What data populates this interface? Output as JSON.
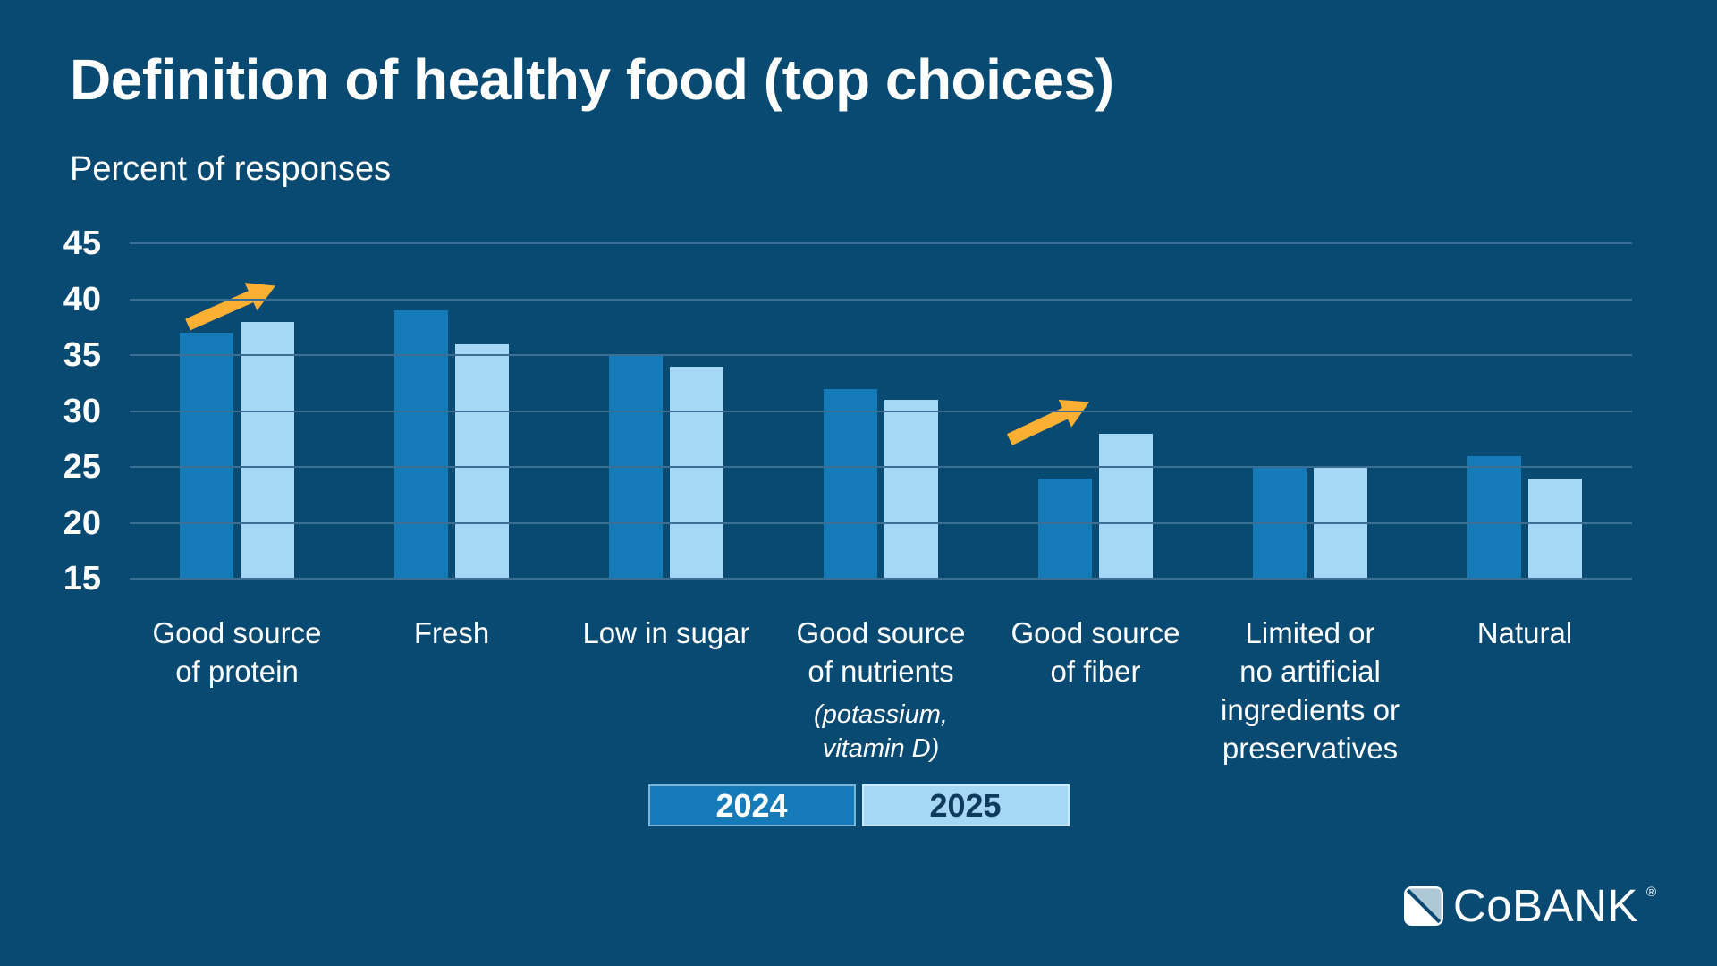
{
  "title": "Definition of healthy food (top choices)",
  "subtitle": "Percent of responses",
  "chart_data": {
    "type": "bar",
    "title": "Definition of healthy food (top choices)",
    "ylabel": "Percent of responses",
    "categories": [
      {
        "label": "Good source of protein",
        "lines": [
          "Good source",
          "of protein"
        ],
        "note_lines": []
      },
      {
        "label": "Fresh",
        "lines": [
          "Fresh"
        ],
        "note_lines": []
      },
      {
        "label": "Low in sugar",
        "lines": [
          "Low in sugar"
        ],
        "note_lines": []
      },
      {
        "label": "Good source of nutrients (potassium, vitamin D)",
        "lines": [
          "Good source",
          "of nutrients"
        ],
        "note_lines": [
          "(potassium,",
          "vitamin D)"
        ]
      },
      {
        "label": "Good source of fiber",
        "lines": [
          "Good source",
          "of fiber"
        ],
        "note_lines": []
      },
      {
        "label": "Limited or no artificial ingredients or preservatives",
        "lines": [
          "Limited or",
          "no artificial",
          "ingredients or",
          "preservatives"
        ],
        "note_lines": []
      },
      {
        "label": "Natural",
        "lines": [
          "Natural"
        ],
        "note_lines": []
      }
    ],
    "series": [
      {
        "name": "2024",
        "color": "#147AB8",
        "values": [
          37,
          39,
          35,
          32,
          24,
          25,
          26
        ]
      },
      {
        "name": "2025",
        "color": "#A6D7F5",
        "values": [
          38,
          36,
          34,
          31,
          28,
          25,
          24
        ]
      }
    ],
    "ylim": [
      15,
      45
    ],
    "yticks": [
      45,
      40,
      35,
      30,
      25,
      20,
      15
    ],
    "grid": true,
    "legend_position": "bottom-center",
    "annotations": [
      {
        "type": "trend-up-arrow",
        "category_index": 0,
        "color": "#FBAF33"
      },
      {
        "type": "trend-up-arrow",
        "category_index": 4,
        "color": "#FBAF33"
      }
    ]
  },
  "colors": {
    "background": "#084A72",
    "bar_2024": "#147AB8",
    "bar_2025": "#A6D7F5",
    "gridline": "#3D6E94",
    "arrow": "#FBAF33",
    "text": "#FFFFFF",
    "legend_2024_text": "#FFFFFF",
    "legend_2025_text": "#0C3B5D"
  },
  "branding": {
    "logo_name": "CoBANK",
    "registered_mark": "®"
  }
}
